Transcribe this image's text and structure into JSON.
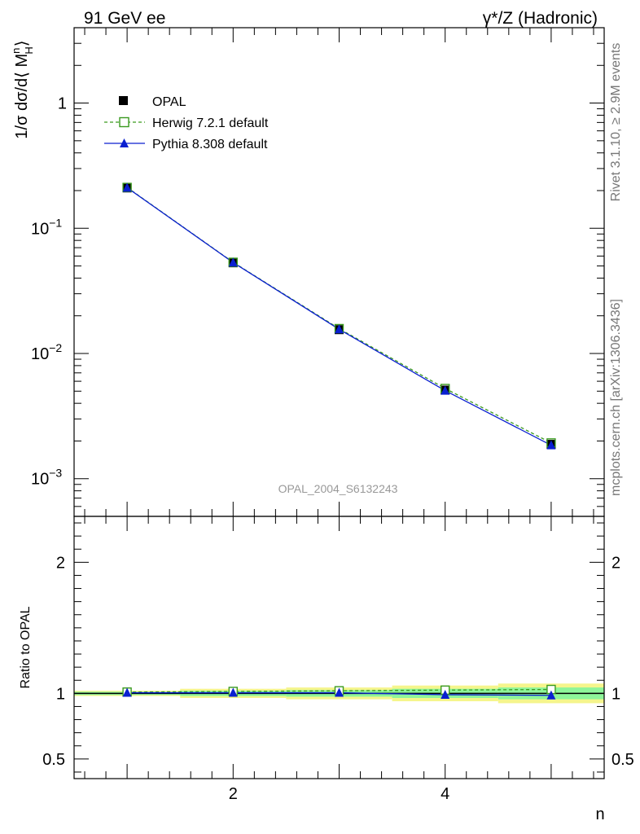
{
  "header": {
    "left": "91 GeV ee",
    "right": "γ*/Z (Hadronic)"
  },
  "side": {
    "rivet": "Rivet 3.1.10, ≥ 2.9M events",
    "mcplots": "mcplots.cern.ch [arXiv:1306.3436]"
  },
  "watermark": "OPAL_2004_S6132243",
  "colors": {
    "data": "#000000",
    "herwig": "#3a9a1f",
    "pythia": "#0a1fd0",
    "band_outer": "#f5f58c",
    "band_inner": "#8ef59a"
  },
  "chart_data": [
    {
      "type": "line",
      "panel": "main",
      "ylabel": "1/σ dσ/d⟨ M",
      "ylabel_sup": "n",
      "ylabel_sub": "H",
      "ylabel_end": "⟩",
      "yscale": "log",
      "xlim": [
        0.5,
        5.5
      ],
      "ylim": [
        0.0005,
        4.0
      ],
      "y_ticks": [
        {
          "value": 1,
          "label": "1"
        },
        {
          "value": 0.1,
          "label": "10",
          "exp": "−1"
        },
        {
          "value": 0.01,
          "label": "10",
          "exp": "−2"
        },
        {
          "value": 0.001,
          "label": "10",
          "exp": "−3"
        }
      ],
      "legend_position": "top-left",
      "x": [
        1,
        2,
        3,
        4,
        5
      ],
      "series": [
        {
          "name": "OPAL",
          "style": "data",
          "values": [
            0.21,
            0.053,
            0.0155,
            0.0051,
            0.00188
          ]
        },
        {
          "name": "Herwig 7.2.1 default",
          "style": "herwig",
          "values": [
            0.212,
            0.0535,
            0.0158,
            0.00525,
            0.00193
          ]
        },
        {
          "name": "Pythia 8.308 default",
          "style": "pythia",
          "values": [
            0.211,
            0.0533,
            0.0156,
            0.00505,
            0.00185
          ]
        }
      ]
    },
    {
      "type": "line",
      "panel": "ratio",
      "ylabel": "Ratio to OPAL",
      "xlabel": "n",
      "xlim": [
        0.5,
        5.5
      ],
      "ylim": [
        0.35,
        2.35
      ],
      "y_ticks": [
        {
          "value": 2,
          "label": "2"
        },
        {
          "value": 1,
          "label": "1"
        },
        {
          "value": 0.5,
          "label": "0.5"
        }
      ],
      "x_ticks": [
        {
          "value": 2,
          "label": "2"
        },
        {
          "value": 4,
          "label": "4"
        }
      ],
      "x": [
        1,
        2,
        3,
        4,
        5
      ],
      "bands": {
        "outer": [
          0.02,
          0.035,
          0.045,
          0.06,
          0.075
        ],
        "inner": [
          0.012,
          0.02,
          0.025,
          0.035,
          0.045
        ]
      },
      "series": [
        {
          "name": "Herwig 7.2.1 default",
          "style": "herwig",
          "values": [
            1.01,
            1.015,
            1.02,
            1.025,
            1.03
          ]
        },
        {
          "name": "Pythia 8.308 default",
          "style": "pythia",
          "values": [
            1.005,
            1.005,
            1.005,
            0.99,
            0.985
          ]
        }
      ]
    }
  ]
}
